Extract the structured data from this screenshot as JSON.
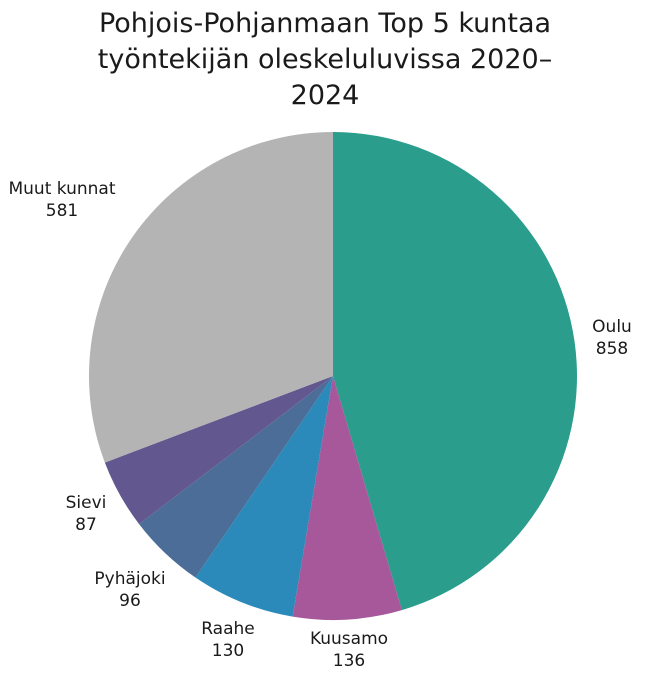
{
  "title_lines": [
    "Pohjois-Pohjanmaan Top 5 kuntaa",
    "työntekijän oleskeluluvissa 2020–",
    "2024"
  ],
  "chart_data": {
    "type": "pie",
    "title": "Pohjois-Pohjanmaan Top 5 kuntaa työntekijän oleskeluluvissa 2020–2024",
    "start_angle": "12 o'clock, clockwise",
    "categories": [
      "Oulu",
      "Kuusamo",
      "Raahe",
      "Pyhäjoki",
      "Sievi",
      "Muut kunnat"
    ],
    "values": [
      858,
      136,
      130,
      96,
      87,
      581
    ],
    "colors": [
      "#2a9d8c",
      "#a6589a",
      "#2b8ab9",
      "#4b6d98",
      "#62578f",
      "#b4b4b4"
    ],
    "data_labels": [
      "Oulu 858",
      "Kuusamo 136",
      "Raahe 130",
      "Pyhäjoki 96",
      "Sievi 87",
      "Muut kunnat 581"
    ],
    "legend": "none (data labels)"
  },
  "labels": [
    {
      "name": "Oulu",
      "value": "858"
    },
    {
      "name": "Kuusamo",
      "value": "136"
    },
    {
      "name": "Raahe",
      "value": "130"
    },
    {
      "name": "Pyhäjoki",
      "value": "96"
    },
    {
      "name": "Sievi",
      "value": "87"
    },
    {
      "name": "Muut kunnat",
      "value": "581"
    }
  ]
}
